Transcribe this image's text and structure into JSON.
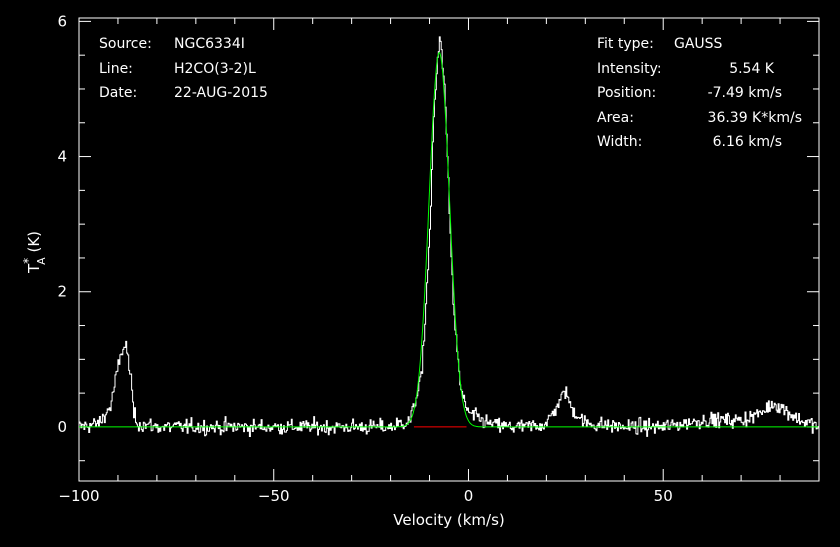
{
  "header": {
    "source_label": "Source:",
    "source": "NGC6334I",
    "line_label": "Line:",
    "line": "H2CO(3-2)L",
    "date_label": "Date:",
    "date": "22-AUG-2015"
  },
  "fit": {
    "type_label": "Fit type:",
    "type": "GAUSS",
    "intensity_label": "Intensity:",
    "intensity": "5.54 K",
    "position_label": "Position:",
    "position": "-7.49 km/s",
    "area_label": "Area:",
    "area": "36.39 K*km/s",
    "width_label": "Width:",
    "width": "6.16 km/s"
  },
  "chart_data": {
    "type": "line",
    "xlabel": "Velocity (km/s)",
    "ylabel": "T*A (K)",
    "xlim": [
      -100,
      90
    ],
    "ylim": [
      -0.8,
      6.05
    ],
    "xticks": [
      -100,
      -50,
      0,
      50
    ],
    "yticks": [
      0,
      2,
      4,
      6
    ],
    "grid": false,
    "series": [
      {
        "kind": "spectrum",
        "color": "#ffffff",
        "x": [
          -100,
          -95,
          -92,
          -90,
          -89,
          -88,
          -87,
          -86,
          -85,
          -80,
          -60,
          -40,
          -20,
          -15,
          -12,
          -10,
          -9,
          -8,
          -7.5,
          -7,
          -6,
          -5,
          -4,
          -2,
          0,
          5,
          10,
          15,
          20,
          24,
          25,
          26,
          30,
          40,
          50,
          60,
          70,
          75,
          78,
          80,
          85,
          90
        ],
        "y": [
          0,
          0.05,
          0.3,
          0.9,
          1.15,
          1.2,
          0.8,
          0.2,
          0.05,
          0.0,
          0.0,
          0.0,
          0.0,
          0.1,
          0.8,
          2.9,
          4.6,
          5.4,
          5.75,
          5.6,
          4.8,
          3.2,
          1.8,
          0.5,
          0.2,
          0.05,
          0.0,
          0.0,
          0.05,
          0.45,
          0.55,
          0.3,
          0.05,
          0.0,
          0.0,
          0.1,
          0.1,
          0.2,
          0.35,
          0.3,
          0.1,
          0.0
        ],
        "noise_rms": 0.13
      },
      {
        "kind": "gaussian-fit",
        "color": "#00ff00",
        "amplitude": 5.54,
        "center": -7.49,
        "fwhm": 6.16
      },
      {
        "kind": "fit-window-baseline",
        "color": "#ff0000",
        "x": [
          -14,
          -0.5
        ],
        "y": [
          0,
          0
        ]
      }
    ]
  }
}
